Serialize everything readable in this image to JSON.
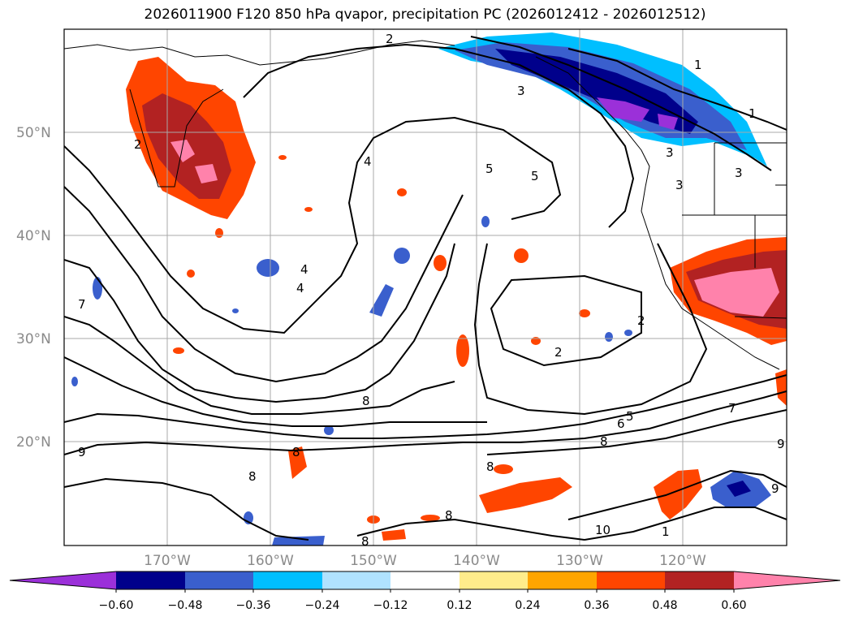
{
  "title": "2026011900 F120 850 hPa qvapor, precipitation PC (2026012412 - 2026012512)",
  "lat_labels": [
    "50°N",
    "40°N",
    "30°N",
    "20°N"
  ],
  "lon_labels": [
    "170°W",
    "160°W",
    "150°W",
    "140°W",
    "130°W",
    "120°W"
  ],
  "colorbar": {
    "ticks": [
      "−0.60",
      "−0.48",
      "−0.36",
      "−0.24",
      "−0.12",
      "0.12",
      "0.24",
      "0.36",
      "0.48",
      "0.60"
    ],
    "colors": [
      "#9b30d9",
      "#00008b",
      "#3a5fcd",
      "#00bfff",
      "#b0e2ff",
      "#ffffff",
      "#ffec8b",
      "#ffa500",
      "#ff4500",
      "#b22222",
      "#ff82ab"
    ]
  },
  "contour_labels": [
    "2",
    "3",
    "1",
    "3",
    "1",
    "3",
    "3",
    "4",
    "5",
    "5",
    "2",
    "4",
    "4",
    "7",
    "2",
    "2",
    "8",
    "6",
    "5",
    "7",
    "8",
    "9",
    "8",
    "8",
    "8",
    "8",
    "8",
    "9",
    "10",
    "1",
    "9"
  ]
}
